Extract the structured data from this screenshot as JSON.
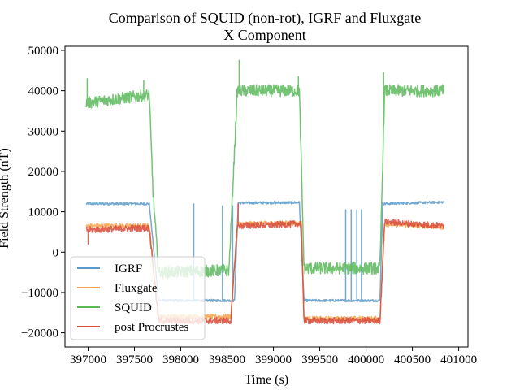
{
  "chart_data": {
    "type": "line",
    "title_line1": "Comparison of SQUID (non-rot), IGRF and Fluxgate",
    "title_line2": "X Component",
    "xlabel": "Time (s)",
    "ylabel": "Field Strength (nT)",
    "xlim": [
      396750,
      401100
    ],
    "ylim": [
      -23500,
      51000
    ],
    "xticks": [
      397000,
      397500,
      398000,
      398500,
      399000,
      399500,
      400000,
      400500,
      401000
    ],
    "yticks": [
      -20000,
      -10000,
      0,
      10000,
      20000,
      30000,
      40000,
      50000
    ],
    "grid": false,
    "legend_position": "lower-left",
    "series": [
      {
        "name": "IGRF",
        "color": "#5b9bc9",
        "noise": 300,
        "points": [
          [
            396980,
            12000
          ],
          [
            397660,
            12000
          ],
          [
            397760,
            -12000
          ],
          [
            398580,
            -12000
          ],
          [
            398620,
            12200
          ],
          [
            399280,
            12300
          ],
          [
            399330,
            -12000
          ],
          [
            400150,
            -12000
          ],
          [
            400180,
            12000
          ],
          [
            400840,
            12400
          ]
        ],
        "spikes": [
          [
            398140,
            12000
          ],
          [
            398450,
            11500
          ],
          [
            398560,
            11500
          ],
          [
            399780,
            10500
          ],
          [
            399840,
            10500
          ],
          [
            399900,
            10500
          ],
          [
            399950,
            10500
          ]
        ]
      },
      {
        "name": "Fluxgate",
        "color": "#f5a24d",
        "noise": 600,
        "points": [
          [
            396980,
            6500
          ],
          [
            397660,
            6500
          ],
          [
            397760,
            -16000
          ],
          [
            398540,
            -16000
          ],
          [
            398610,
            7000
          ],
          [
            399300,
            7200
          ],
          [
            399330,
            -16500
          ],
          [
            400150,
            -16500
          ],
          [
            400200,
            7000
          ],
          [
            400840,
            6200
          ]
        ],
        "spikes": []
      },
      {
        "name": "SQUID",
        "color": "#5cb85c",
        "noise": 1500,
        "points": [
          [
            396980,
            37000
          ],
          [
            397660,
            39000
          ],
          [
            397700,
            15000
          ],
          [
            397760,
            -5000
          ],
          [
            398520,
            -4500
          ],
          [
            398610,
            40000
          ],
          [
            399280,
            40000
          ],
          [
            399330,
            -4000
          ],
          [
            400150,
            -4000
          ],
          [
            400200,
            40000
          ],
          [
            400840,
            40000
          ]
        ],
        "spikes": [
          [
            396990,
            43000
          ],
          [
            397600,
            42500
          ],
          [
            398630,
            47500
          ],
          [
            399270,
            43500
          ],
          [
            400190,
            44500
          ]
        ]
      },
      {
        "name": "post Procrustes",
        "color": "#d94b3a",
        "noise": 800,
        "points": [
          [
            396980,
            5500
          ],
          [
            397660,
            6000
          ],
          [
            397760,
            -17000
          ],
          [
            398540,
            -17000
          ],
          [
            398610,
            6500
          ],
          [
            399300,
            7000
          ],
          [
            399330,
            -17000
          ],
          [
            400150,
            -17000
          ],
          [
            400200,
            7500
          ],
          [
            400840,
            6500
          ]
        ],
        "spikes": [
          [
            397000,
            2000
          ],
          [
            398620,
            12000
          ]
        ]
      }
    ]
  }
}
